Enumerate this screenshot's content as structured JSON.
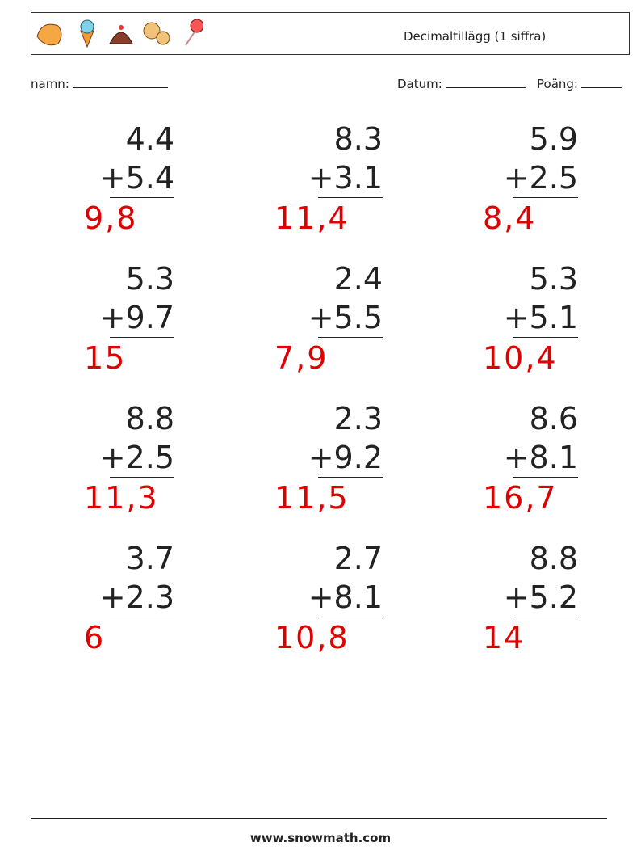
{
  "header": {
    "title": "Decimaltillägg (1 siffra)",
    "name_label": "namn:",
    "date_label": "Datum:",
    "score_label": "Poäng:"
  },
  "problems": [
    {
      "top": "4.4",
      "bottom": "+5.4",
      "answer": "9,8"
    },
    {
      "top": "8.3",
      "bottom": "+3.1",
      "answer": "11,4"
    },
    {
      "top": "5.9",
      "bottom": "+2.5",
      "answer": "8,4"
    },
    {
      "top": "5.3",
      "bottom": "+9.7",
      "answer": "15"
    },
    {
      "top": "2.4",
      "bottom": "+5.5",
      "answer": "7,9"
    },
    {
      "top": "5.3",
      "bottom": "+5.1",
      "answer": "10,4"
    },
    {
      "top": "8.8",
      "bottom": "+2.5",
      "answer": "11,3"
    },
    {
      "top": "2.3",
      "bottom": "+9.2",
      "answer": "11,5"
    },
    {
      "top": "8.6",
      "bottom": "+8.1",
      "answer": "16,7"
    },
    {
      "top": "3.7",
      "bottom": "+2.3",
      "answer": "6"
    },
    {
      "top": "2.7",
      "bottom": "+8.1",
      "answer": "10,8"
    },
    {
      "top": "8.8",
      "bottom": "+5.2",
      "answer": "14"
    }
  ],
  "footer": {
    "url": "www.snowmath.com"
  }
}
